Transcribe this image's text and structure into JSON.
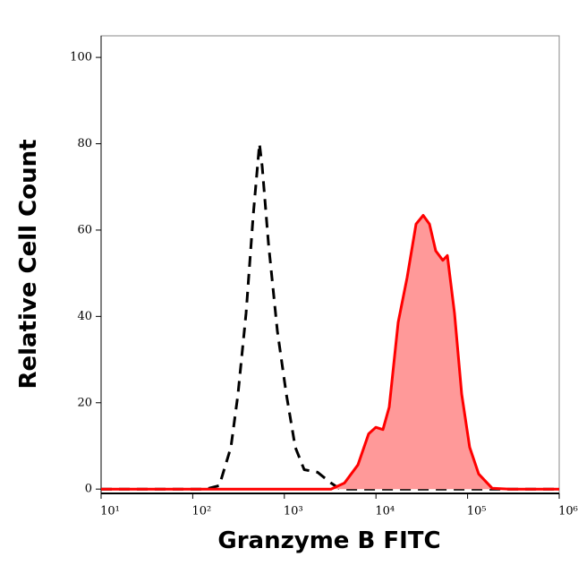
{
  "chart_data": {
    "type": "histogram_overlay",
    "x_label": "Granzyme B FITC",
    "y_label": "Relative Cell Count",
    "x_scale": "log",
    "xlim": [
      10,
      1000000
    ],
    "ylim": [
      -1,
      105
    ],
    "xticks": [
      {
        "value": 10,
        "label": "10¹"
      },
      {
        "value": 100,
        "label": "10²"
      },
      {
        "value": 1000,
        "label": "10³"
      },
      {
        "value": 10000,
        "label": "10⁴"
      },
      {
        "value": 100000,
        "label": "10⁵"
      },
      {
        "value": 1000000,
        "label": "10⁶"
      }
    ],
    "yticks": [
      0,
      20,
      40,
      60,
      80,
      100
    ],
    "series": [
      {
        "color": "#000000",
        "line_style": "dashed",
        "x": [
          10,
          139,
          195,
          261,
          312,
          382,
          457,
          535,
          573,
          670,
          839,
          1050,
          1315,
          1648,
          2307,
          3236,
          4046,
          1000000
        ],
        "values": [
          0,
          0,
          0.8,
          9.7,
          22,
          40.7,
          63.4,
          80,
          74.8,
          57,
          36.6,
          22,
          9.7,
          4.5,
          3.9,
          1.4,
          0,
          0
        ]
      },
      {
        "color": "#ff0000",
        "fill_color": "#ff9999",
        "line_style": "solid",
        "x": [
          10,
          3236,
          4530,
          6353,
          8318,
          9954,
          11912,
          13960,
          17470,
          21880,
          27400,
          32810,
          38370,
          44870,
          53700,
          60100,
          71940,
          86300,
          105400,
          132100,
          185300,
          290500,
          1000000
        ],
        "values": [
          0,
          0,
          1.4,
          5.6,
          12.8,
          14.3,
          13.8,
          19,
          38.6,
          49,
          61.4,
          63.4,
          61.4,
          55.2,
          53,
          54.1,
          40.7,
          22,
          9.7,
          3.5,
          0.2,
          0,
          0
        ]
      }
    ]
  }
}
